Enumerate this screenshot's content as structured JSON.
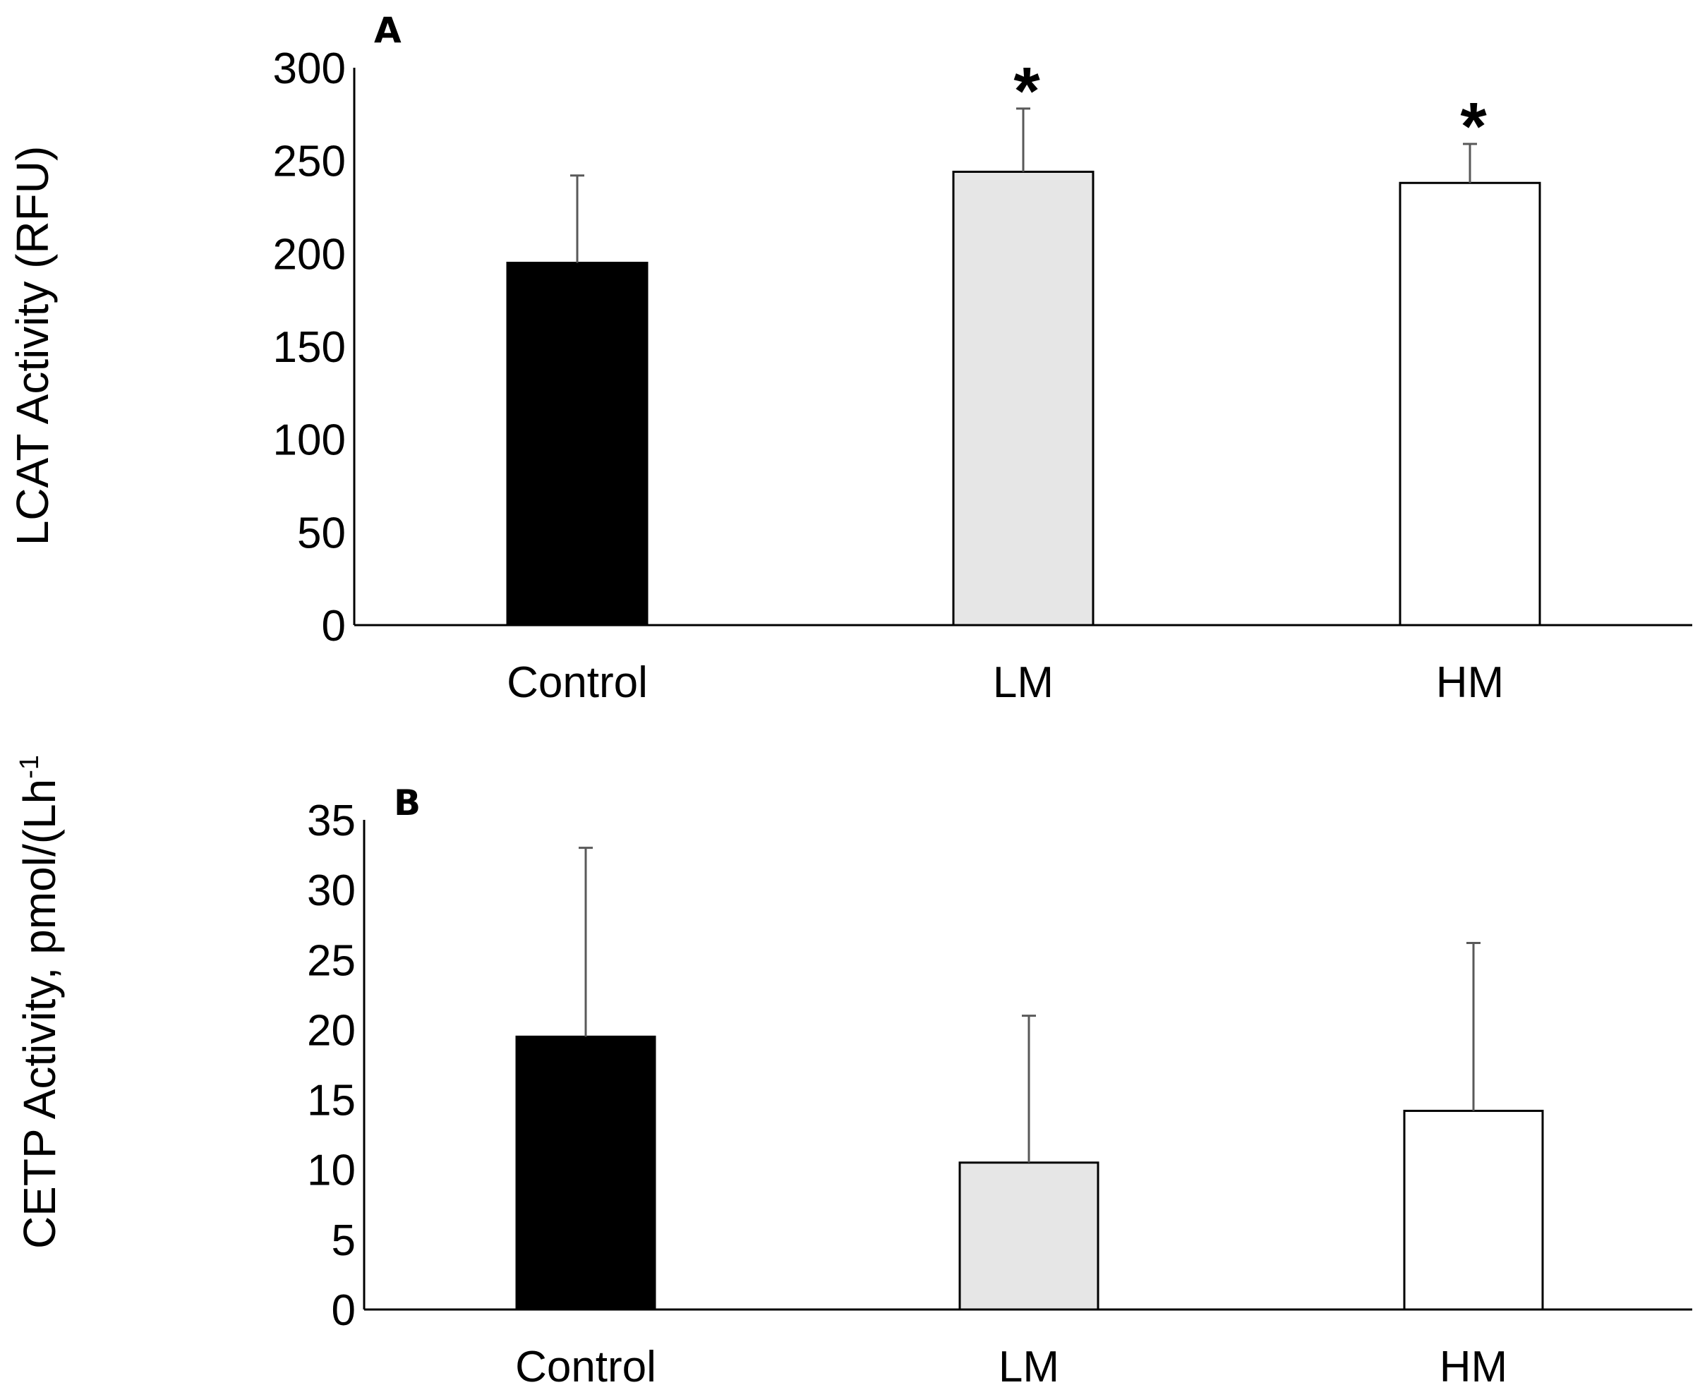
{
  "chart_data": [
    {
      "panel": "A",
      "type": "bar",
      "categories": [
        "Control",
        "LM",
        "HM"
      ],
      "values": [
        195,
        244,
        238
      ],
      "error_upper": [
        47,
        34,
        21
      ],
      "significance": [
        "",
        "*",
        "*"
      ],
      "ylabel": "LCAT Activity (RFU)",
      "ylim": [
        0,
        300
      ],
      "yticks": [
        0,
        50,
        100,
        150,
        200,
        250,
        300
      ],
      "grid": false,
      "colors": [
        "#000000",
        "#e6e6e6",
        "#ffffff"
      ]
    },
    {
      "panel": "B",
      "type": "bar",
      "categories": [
        "Control",
        "LM",
        "HM"
      ],
      "values": [
        19.5,
        10.5,
        14.2
      ],
      "error_upper": [
        13.5,
        10.5,
        12.0
      ],
      "significance": [
        "",
        "",
        ""
      ],
      "ylabel_main": "CETP Activity, pmol/(Lh",
      "ylabel_sup": "-1",
      "ylim": [
        0,
        35
      ],
      "yticks": [
        0,
        5,
        10,
        15,
        20,
        25,
        30,
        35
      ],
      "grid": false,
      "colors": [
        "#000000",
        "#e6e6e6",
        "#ffffff"
      ]
    }
  ]
}
